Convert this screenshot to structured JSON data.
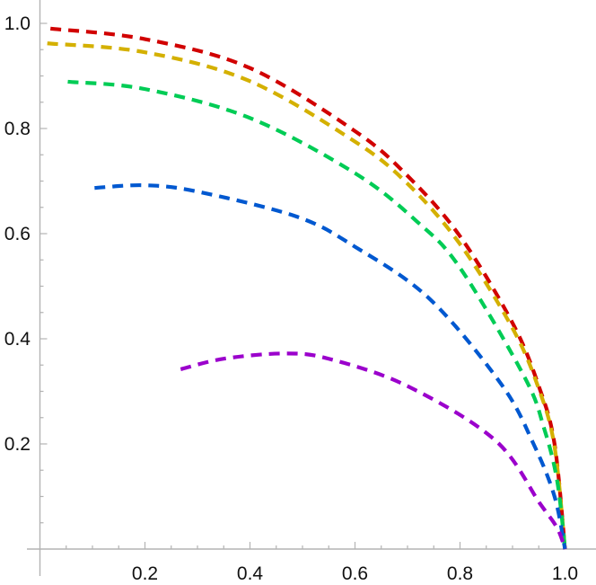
{
  "chart_data": {
    "type": "line",
    "title": "",
    "xlabel": "",
    "ylabel": "",
    "xlim": [
      0,
      1.05
    ],
    "ylim": [
      0,
      1.0
    ],
    "grid": false,
    "x_ticks": [
      "0.2",
      "0.4",
      "0.6",
      "0.8",
      "1.0"
    ],
    "y_ticks": [
      "0.2",
      "0.4",
      "0.6",
      "0.8",
      "1.0"
    ],
    "line_style": "dashed",
    "series": [
      {
        "color": "#d10000",
        "x": [
          0.02,
          0.2,
          0.4,
          0.6,
          0.7,
          0.8,
          0.9,
          0.95,
          0.98,
          1.0
        ],
        "y": [
          0.99,
          0.97,
          0.915,
          0.795,
          0.71,
          0.595,
          0.43,
          0.31,
          0.2,
          0.0
        ]
      },
      {
        "color": "#d4b000",
        "x": [
          0.014,
          0.2,
          0.4,
          0.6,
          0.7,
          0.8,
          0.9,
          0.95,
          0.98,
          1.0
        ],
        "y": [
          0.962,
          0.945,
          0.89,
          0.775,
          0.695,
          0.58,
          0.42,
          0.305,
          0.195,
          0.0
        ]
      },
      {
        "color": "#00cc55",
        "x": [
          0.053,
          0.2,
          0.4,
          0.6,
          0.718,
          0.8,
          0.923,
          0.96,
          0.985,
          1.0
        ],
        "y": [
          0.889,
          0.875,
          0.82,
          0.715,
          0.623,
          0.535,
          0.327,
          0.23,
          0.13,
          0.0
        ]
      },
      {
        "color": "#0058d0",
        "x": [
          0.104,
          0.2,
          0.3,
          0.49,
          0.6,
          0.742,
          0.879,
          0.94,
          0.98,
          1.0
        ],
        "y": [
          0.687,
          0.692,
          0.68,
          0.632,
          0.575,
          0.476,
          0.313,
          0.2,
          0.1,
          0.0
        ]
      },
      {
        "color": "#9b00cc",
        "x": [
          0.268,
          0.35,
          0.465,
          0.55,
          0.7,
          0.867,
          0.952,
          0.985,
          1.0
        ],
        "y": [
          0.342,
          0.362,
          0.372,
          0.362,
          0.31,
          0.207,
          0.087,
          0.04,
          0.0
        ]
      }
    ]
  }
}
